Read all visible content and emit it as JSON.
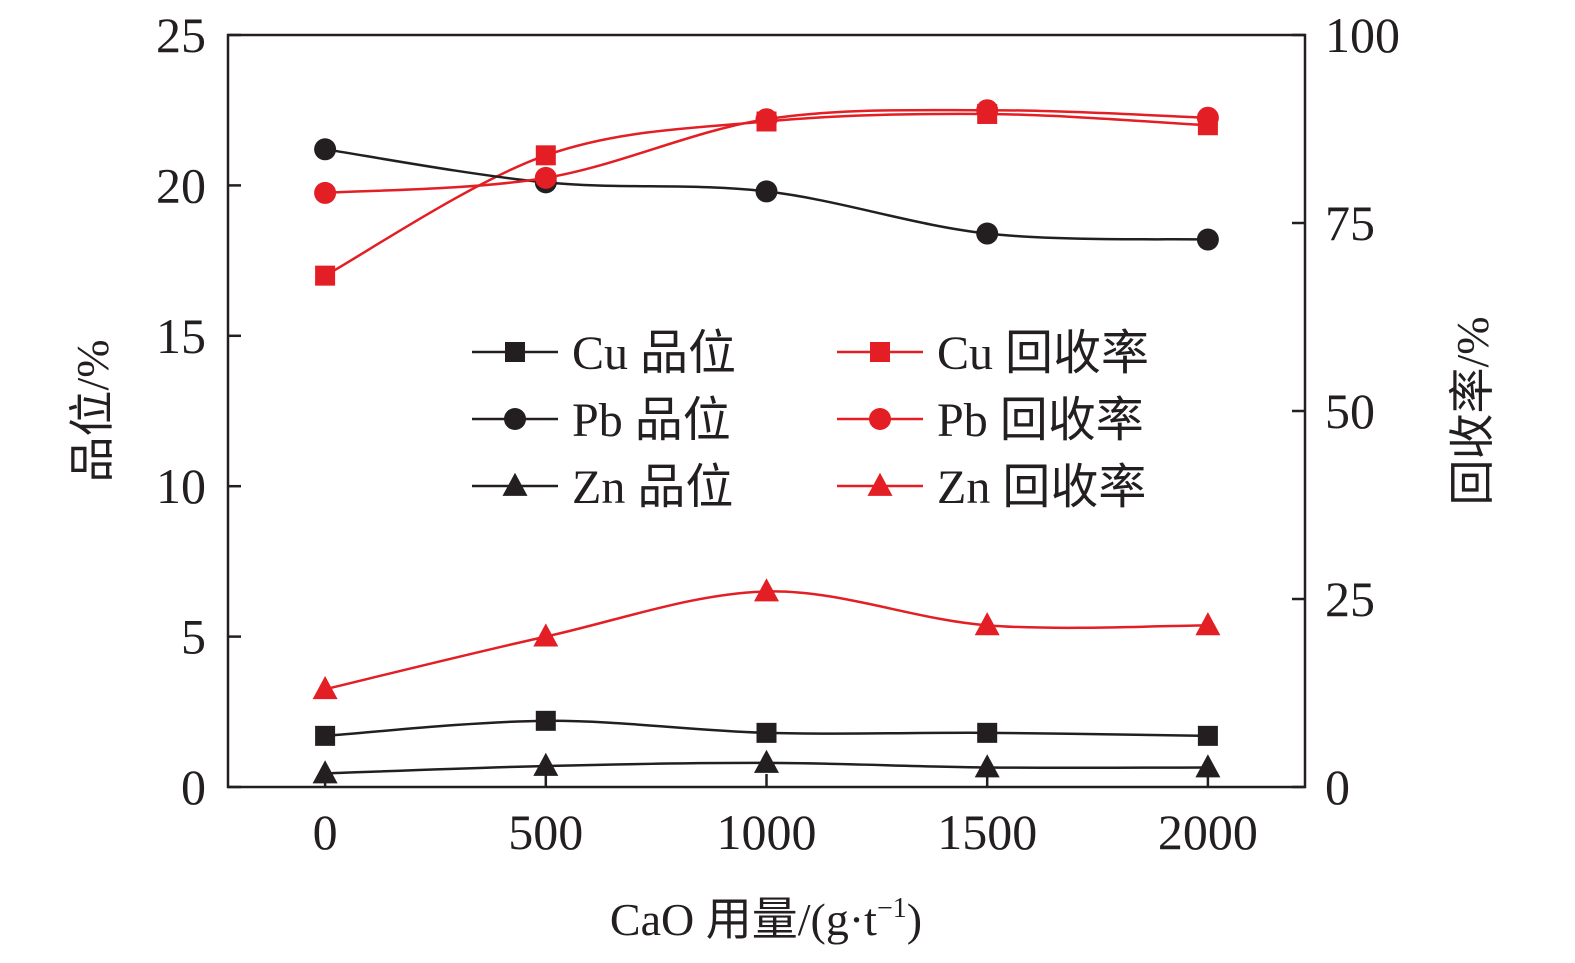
{
  "chart_data": {
    "type": "line",
    "xlabel": "CaO 用量/(g·t",
    "xlabel_sup": "−1",
    "xlabel_close": ")",
    "ylabel_left": "品位/%",
    "ylabel_right": "回收率/%",
    "x": [
      0,
      500,
      1000,
      1500,
      2000
    ],
    "x_ticks": [
      "0",
      "500",
      "1000",
      "1500",
      "2000"
    ],
    "xlim": [
      -220,
      2220
    ],
    "y_left_ticks": [
      "0",
      "5",
      "10",
      "15",
      "20",
      "25"
    ],
    "ylim_left": [
      0,
      25
    ],
    "y_right_ticks": [
      "0",
      "25",
      "50",
      "75",
      "100"
    ],
    "ylim_right": [
      0,
      100
    ],
    "grid": false,
    "legend_position": "center",
    "series": [
      {
        "name": "Cu 品位",
        "axis": "left",
        "marker": "square",
        "color": "#231f20",
        "values": [
          1.7,
          2.2,
          1.8,
          1.8,
          1.7
        ]
      },
      {
        "name": "Cu 回收率",
        "axis": "right",
        "marker": "square",
        "color": "#e31e24",
        "values": [
          68,
          84,
          88.5,
          89.5,
          88
        ]
      },
      {
        "name": "Pb 品位",
        "axis": "left",
        "marker": "circle",
        "color": "#231f20",
        "values": [
          21.2,
          20.1,
          19.8,
          18.4,
          18.2
        ]
      },
      {
        "name": "Pb 回收率",
        "axis": "right",
        "marker": "circle",
        "color": "#e31e24",
        "values": [
          79,
          81,
          88.8,
          90,
          89
        ]
      },
      {
        "name": "Zn 品位",
        "axis": "left",
        "marker": "triangle",
        "color": "#231f20",
        "values": [
          0.45,
          0.7,
          0.8,
          0.65,
          0.65
        ]
      },
      {
        "name": "Zn 回收率",
        "axis": "right",
        "marker": "triangle",
        "color": "#e31e24",
        "values": [
          13,
          20,
          26,
          21.5,
          21.5
        ]
      }
    ]
  }
}
